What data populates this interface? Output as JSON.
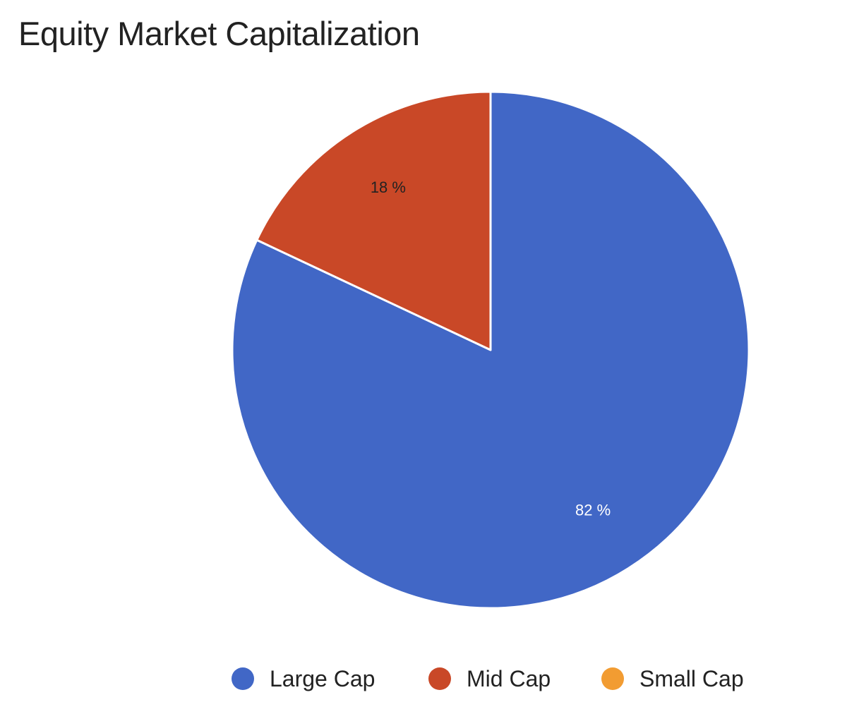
{
  "chart_data": {
    "type": "pie",
    "title": "Equity Market Capitalization",
    "slices": [
      {
        "name": "Large Cap",
        "value": 82,
        "label": "82 %",
        "color": "#4167c6"
      },
      {
        "name": "Mid Cap",
        "value": 18,
        "label": "18 %",
        "color": "#c94827"
      },
      {
        "name": "Small Cap",
        "value": 0,
        "label": "",
        "color": "#f29c32"
      }
    ],
    "legend_position": "bottom"
  }
}
